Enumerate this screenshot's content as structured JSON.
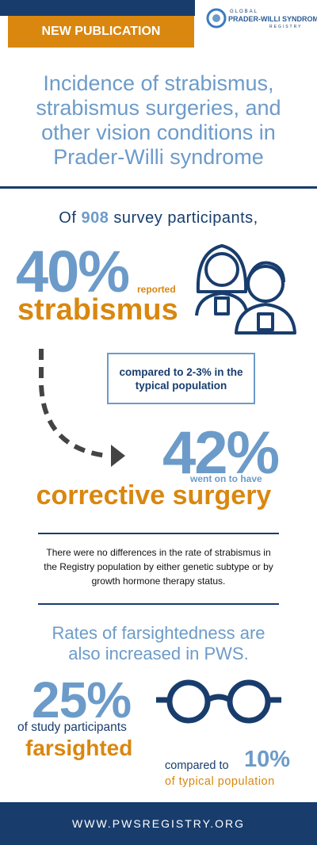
{
  "header": {
    "badge": "NEW PUBLICATION",
    "logo_top": "GLOBAL",
    "logo_main": "PRADER-WILLI SYNDROME",
    "logo_bottom": "REGISTRY"
  },
  "title": "Incidence of strabismus, strabismus surgeries, and other vision conditions in Prader-Willi syndrome",
  "intro": {
    "prefix": "Of ",
    "count": "908",
    "suffix": " survey participants,"
  },
  "strabismus": {
    "percent": "40%",
    "reported": "reported",
    "label": "strabismus",
    "comparison": "compared to 2-3% in the typical population"
  },
  "surgery": {
    "percent": "42%",
    "note": "went on to have",
    "label": "corrective surgery"
  },
  "note": "There were no differences in the rate of strabismus in the Registry population by either genetic subtype or by growth hormone therapy status.",
  "farsighted": {
    "heading": "Rates of farsightedness are also increased in PWS.",
    "percent": "25%",
    "note": "of study participants",
    "label": "farsighted",
    "compared_prefix": "compared to",
    "compared_percent": "10%",
    "compared_note": "of typical population"
  },
  "footer": "WWW.PWSREGISTRY.ORG"
}
